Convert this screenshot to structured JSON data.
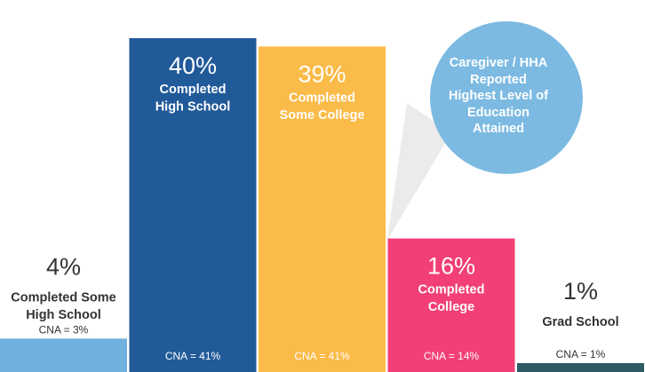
{
  "callout": {
    "lines": [
      "Caregiver / HHA",
      "Reported",
      "Highest Level of",
      "Education",
      "Attained"
    ]
  },
  "chart_data": {
    "type": "bar",
    "categories": [
      "Completed Some High School",
      "Completed High School",
      "Completed Some College",
      "Completed College",
      "Grad School"
    ],
    "series": [
      {
        "values": [
          4,
          40,
          39,
          16,
          1
        ]
      }
    ],
    "value_labels": [
      "4%",
      "40%",
      "39%",
      "16%",
      "1%"
    ],
    "label_lines": [
      [
        "Completed Some",
        "High School"
      ],
      [
        "Completed",
        "High School"
      ],
      [
        "Completed",
        "Some College"
      ],
      [
        "Completed",
        "College"
      ],
      [
        "Grad School"
      ]
    ],
    "notes": [
      "CNA = 3%",
      "CNA = 41%",
      "CNA = 41%",
      "CNA = 14%",
      "CNA = 1%"
    ],
    "colors": [
      "#6fb0dd",
      "#215a99",
      "#fbbb48",
      "#f23f75",
      "#2e5a66"
    ],
    "ylim": [
      0,
      40
    ],
    "grid": false,
    "legend": "none"
  }
}
